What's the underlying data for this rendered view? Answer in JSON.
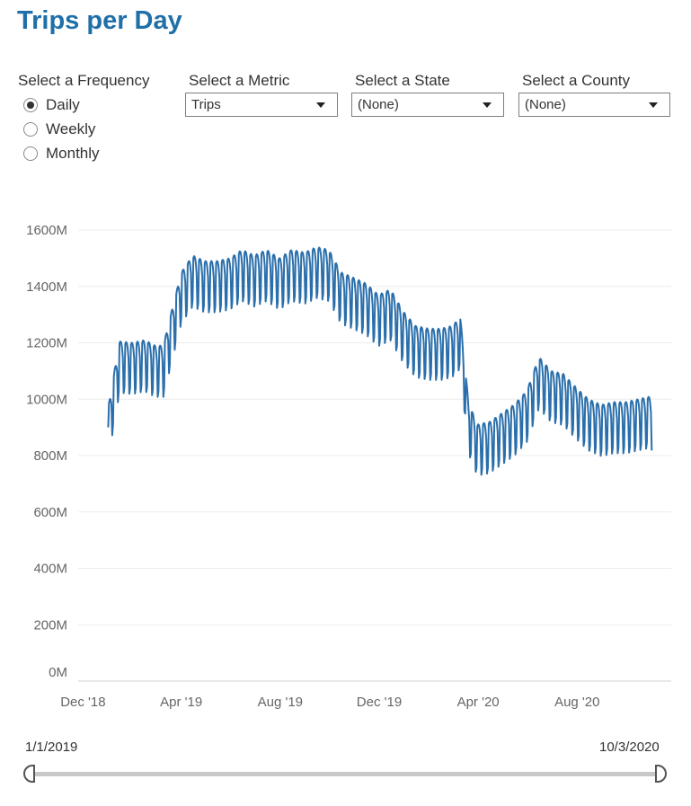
{
  "title": "Trips per Day",
  "frequency": {
    "label": "Select a Frequency",
    "options": [
      "Daily",
      "Weekly",
      "Monthly"
    ],
    "selected": "Daily"
  },
  "metric": {
    "label": "Select a Metric",
    "value": "Trips"
  },
  "state": {
    "label": "Select a State",
    "value": "(None)"
  },
  "county": {
    "label": "Select a County",
    "value": "(None)"
  },
  "slider": {
    "start_label": "1/1/2019",
    "end_label": "10/3/2020"
  },
  "colors": {
    "title": "#1f6fa8",
    "line": "#2a6fab",
    "gridline": "#ececec"
  },
  "chart_data": {
    "type": "line",
    "title": "",
    "xlabel": "",
    "ylabel": "",
    "ylim": [
      0,
      1600000000
    ],
    "ytick_values": [
      0,
      200000000,
      400000000,
      600000000,
      800000000,
      1000000000,
      1200000000,
      1400000000,
      1600000000
    ],
    "ytick_labels": [
      "0M",
      "200M",
      "400M",
      "600M",
      "800M",
      "1000M",
      "1200M",
      "1400M",
      "1600M"
    ],
    "xlim": [
      "2018-11-25",
      "2020-11-25"
    ],
    "xtick_values": [
      "2018-12-01",
      "2019-04-01",
      "2019-08-01",
      "2019-12-01",
      "2020-04-01",
      "2020-08-01"
    ],
    "xtick_labels": [
      "Dec '18",
      "Apr '19",
      "Aug '19",
      "Dec '19",
      "Apr '20",
      "Aug '20"
    ],
    "grid": true,
    "series": [
      {
        "color": "#2a6fab",
        "points": [
          [
            "2019-01-01",
            900000000
          ],
          [
            "2019-01-15",
            1135000000
          ],
          [
            "2019-01-31",
            1130000000
          ],
          [
            "2019-02-15",
            1140000000
          ],
          [
            "2019-02-28",
            1120000000
          ],
          [
            "2019-03-10",
            1120000000
          ],
          [
            "2019-03-20",
            1240000000
          ],
          [
            "2019-04-01",
            1380000000
          ],
          [
            "2019-04-15",
            1440000000
          ],
          [
            "2019-04-30",
            1420000000
          ],
          [
            "2019-05-15",
            1420000000
          ],
          [
            "2019-05-31",
            1430000000
          ],
          [
            "2019-06-15",
            1460000000
          ],
          [
            "2019-06-30",
            1440000000
          ],
          [
            "2019-07-15",
            1460000000
          ],
          [
            "2019-07-31",
            1430000000
          ],
          [
            "2019-08-15",
            1460000000
          ],
          [
            "2019-08-31",
            1450000000
          ],
          [
            "2019-09-15",
            1470000000
          ],
          [
            "2019-09-30",
            1460000000
          ],
          [
            "2019-10-15",
            1380000000
          ],
          [
            "2019-10-31",
            1360000000
          ],
          [
            "2019-11-15",
            1340000000
          ],
          [
            "2019-11-30",
            1300000000
          ],
          [
            "2019-12-15",
            1320000000
          ],
          [
            "2019-12-31",
            1240000000
          ],
          [
            "2020-01-15",
            1190000000
          ],
          [
            "2020-01-31",
            1180000000
          ],
          [
            "2020-02-15",
            1180000000
          ],
          [
            "2020-02-29",
            1190000000
          ],
          [
            "2020-03-10",
            1220000000
          ],
          [
            "2020-03-20",
            920000000
          ],
          [
            "2020-03-31",
            840000000
          ],
          [
            "2020-04-15",
            850000000
          ],
          [
            "2020-04-30",
            880000000
          ],
          [
            "2020-05-15",
            910000000
          ],
          [
            "2020-05-31",
            960000000
          ],
          [
            "2020-06-15",
            1080000000
          ],
          [
            "2020-06-30",
            1030000000
          ],
          [
            "2020-07-15",
            1020000000
          ],
          [
            "2020-07-31",
            970000000
          ],
          [
            "2020-08-15",
            930000000
          ],
          [
            "2020-08-31",
            910000000
          ],
          [
            "2020-09-15",
            920000000
          ],
          [
            "2020-09-30",
            920000000
          ],
          [
            "2020-10-15",
            930000000
          ],
          [
            "2020-10-31",
            940000000
          ],
          [
            "2020-11-01",
            930000000
          ]
        ]
      }
    ]
  }
}
